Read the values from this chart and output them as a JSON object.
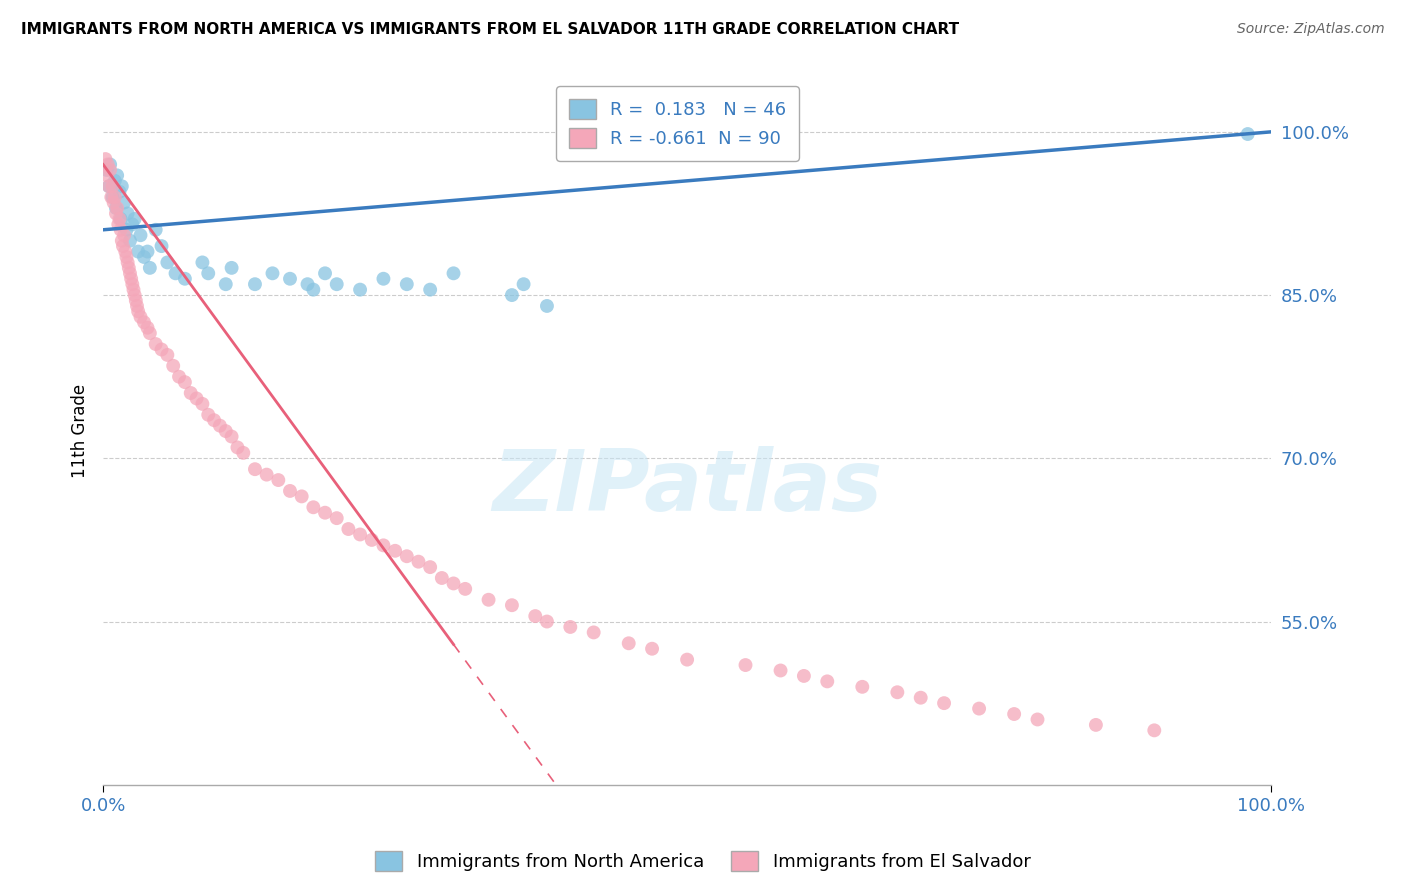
{
  "title": "IMMIGRANTS FROM NORTH AMERICA VS IMMIGRANTS FROM EL SALVADOR 11TH GRADE CORRELATION CHART",
  "source": "Source: ZipAtlas.com",
  "ylabel": "11th Grade",
  "yticks": [
    55.0,
    70.0,
    85.0,
    100.0
  ],
  "ytick_labels": [
    "55.0%",
    "70.0%",
    "85.0%",
    "100.0%"
  ],
  "blue_r": 0.183,
  "blue_n": 46,
  "pink_r": -0.661,
  "pink_n": 90,
  "blue_color": "#89c4e1",
  "pink_color": "#f4a7b9",
  "blue_trend_color": "#3a7bbf",
  "pink_trend_color": "#e8607a",
  "watermark": "ZIPatlas",
  "legend_blue": "Immigrants from North America",
  "legend_pink": "Immigrants from El Salvador",
  "blue_points_x": [
    0.3,
    0.5,
    0.6,
    0.8,
    1.0,
    1.1,
    1.2,
    1.4,
    1.5,
    1.6,
    1.8,
    2.0,
    2.1,
    2.3,
    2.5,
    2.7,
    3.0,
    3.2,
    3.5,
    3.8,
    4.0,
    4.5,
    5.0,
    5.5,
    6.2,
    7.0,
    8.5,
    9.0,
    10.5,
    11.0,
    13.0,
    14.5,
    16.0,
    17.5,
    18.0,
    19.0,
    20.0,
    22.0,
    24.0,
    26.0,
    28.0,
    30.0,
    35.0,
    36.0,
    38.0,
    98.0
  ],
  "blue_points_y": [
    96.5,
    95.0,
    97.0,
    94.0,
    95.5,
    93.0,
    96.0,
    94.5,
    92.0,
    95.0,
    93.5,
    91.0,
    92.5,
    90.0,
    91.5,
    92.0,
    89.0,
    90.5,
    88.5,
    89.0,
    87.5,
    91.0,
    89.5,
    88.0,
    87.0,
    86.5,
    88.0,
    87.0,
    86.0,
    87.5,
    86.0,
    87.0,
    86.5,
    86.0,
    85.5,
    87.0,
    86.0,
    85.5,
    86.5,
    86.0,
    85.5,
    87.0,
    85.0,
    86.0,
    84.0,
    99.8
  ],
  "pink_points_x": [
    0.2,
    0.3,
    0.4,
    0.5,
    0.6,
    0.7,
    0.8,
    0.9,
    1.0,
    1.1,
    1.2,
    1.3,
    1.4,
    1.5,
    1.6,
    1.7,
    1.8,
    1.9,
    2.0,
    2.1,
    2.2,
    2.3,
    2.4,
    2.5,
    2.6,
    2.7,
    2.8,
    2.9,
    3.0,
    3.2,
    3.5,
    3.8,
    4.0,
    4.5,
    5.0,
    5.5,
    6.0,
    6.5,
    7.0,
    7.5,
    8.0,
    8.5,
    9.0,
    9.5,
    10.0,
    10.5,
    11.0,
    11.5,
    12.0,
    13.0,
    14.0,
    15.0,
    16.0,
    17.0,
    18.0,
    19.0,
    20.0,
    21.0,
    22.0,
    23.0,
    24.0,
    25.0,
    26.0,
    27.0,
    28.0,
    29.0,
    30.0,
    31.0,
    33.0,
    35.0,
    37.0,
    38.0,
    40.0,
    42.0,
    45.0,
    47.0,
    50.0,
    55.0,
    58.0,
    60.0,
    62.0,
    65.0,
    68.0,
    70.0,
    72.0,
    75.0,
    78.0,
    80.0,
    85.0,
    90.0
  ],
  "pink_points_y": [
    97.5,
    96.0,
    97.0,
    95.0,
    96.5,
    94.0,
    95.0,
    93.5,
    94.0,
    92.5,
    93.0,
    91.5,
    92.0,
    91.0,
    90.0,
    89.5,
    90.5,
    89.0,
    88.5,
    88.0,
    87.5,
    87.0,
    86.5,
    86.0,
    85.5,
    85.0,
    84.5,
    84.0,
    83.5,
    83.0,
    82.5,
    82.0,
    81.5,
    80.5,
    80.0,
    79.5,
    78.5,
    77.5,
    77.0,
    76.0,
    75.5,
    75.0,
    74.0,
    73.5,
    73.0,
    72.5,
    72.0,
    71.0,
    70.5,
    69.0,
    68.5,
    68.0,
    67.0,
    66.5,
    65.5,
    65.0,
    64.5,
    63.5,
    63.0,
    62.5,
    62.0,
    61.5,
    61.0,
    60.5,
    60.0,
    59.0,
    58.5,
    58.0,
    57.0,
    56.5,
    55.5,
    55.0,
    54.5,
    54.0,
    53.0,
    52.5,
    51.5,
    51.0,
    50.5,
    50.0,
    49.5,
    49.0,
    48.5,
    48.0,
    47.5,
    47.0,
    46.5,
    46.0,
    45.5,
    45.0
  ]
}
